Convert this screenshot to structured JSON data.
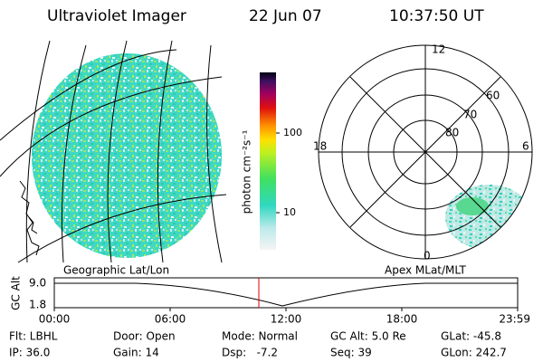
{
  "header": {
    "instrument": "Ultraviolet Imager",
    "date": "22 Jun 07",
    "time": "10:37:50 UT"
  },
  "colorbar": {
    "label": "photon cm⁻²s⁻¹",
    "ticks": [
      "100",
      "10"
    ]
  },
  "left_panel": {
    "caption": "Geographic Lat/Lon"
  },
  "right_panel": {
    "caption": "Apex MLat/MLT",
    "mlt_labels": [
      "12",
      "18",
      "6",
      "0"
    ],
    "lat_labels": [
      "60",
      "70",
      "80"
    ]
  },
  "altitude_plot": {
    "ylabel": "GC Alt",
    "yticks": [
      "9.0",
      "1.8"
    ],
    "xticks": [
      "00:00",
      "06:00",
      "12:00",
      "18:00",
      "23:59"
    ]
  },
  "status": {
    "rows": [
      [
        "Flt: LBHL",
        "Door: Open",
        "Mode: Normal",
        "GC Alt: 5.0 Re",
        "GLat: -45.8"
      ],
      [
        "IP: 36.0",
        "Gain: 14",
        "Dsp:   -7.2",
        "Seq: 39",
        "GLon: 242.7"
      ]
    ]
  }
}
